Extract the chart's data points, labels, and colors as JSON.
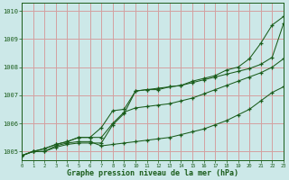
{
  "background_color": "#cce8e8",
  "grid_color": "#d4a0a0",
  "line_color": "#1a5c1a",
  "xlabel": "Graphe pression niveau de la mer (hPa)",
  "xlim": [
    0,
    23
  ],
  "ylim": [
    1004.7,
    1010.3
  ],
  "yticks": [
    1005,
    1006,
    1007,
    1008,
    1009,
    1010
  ],
  "xticks": [
    0,
    1,
    2,
    3,
    4,
    5,
    6,
    7,
    8,
    9,
    10,
    11,
    12,
    13,
    14,
    15,
    16,
    17,
    18,
    19,
    20,
    21,
    22,
    23
  ],
  "series": [
    [
      1004.85,
      1005.0,
      1005.0,
      1005.2,
      1005.3,
      1005.35,
      1005.35,
      1005.2,
      1005.25,
      1005.3,
      1005.35,
      1005.4,
      1005.45,
      1005.5,
      1005.6,
      1005.7,
      1005.8,
      1005.95,
      1006.1,
      1006.3,
      1006.5,
      1006.8,
      1007.1,
      1007.3
    ],
    [
      1004.85,
      1005.0,
      1005.1,
      1005.25,
      1005.35,
      1005.5,
      1005.5,
      1005.5,
      1006.0,
      1006.4,
      1006.55,
      1006.6,
      1006.65,
      1006.7,
      1006.8,
      1006.9,
      1007.05,
      1007.2,
      1007.35,
      1007.5,
      1007.65,
      1007.8,
      1008.0,
      1008.3
    ],
    [
      1004.85,
      1005.0,
      1005.1,
      1005.25,
      1005.35,
      1005.5,
      1005.5,
      1005.85,
      1006.45,
      1006.5,
      1007.15,
      1007.2,
      1007.25,
      1007.3,
      1007.35,
      1007.45,
      1007.55,
      1007.65,
      1007.75,
      1007.85,
      1007.95,
      1008.1,
      1008.35,
      1009.55
    ],
    [
      1004.85,
      1005.0,
      1005.0,
      1005.15,
      1005.25,
      1005.3,
      1005.3,
      1005.3,
      1005.95,
      1006.35,
      1007.15,
      1007.2,
      1007.2,
      1007.3,
      1007.35,
      1007.5,
      1007.6,
      1007.7,
      1007.9,
      1008.0,
      1008.3,
      1008.85,
      1009.5,
      1009.8
    ]
  ]
}
